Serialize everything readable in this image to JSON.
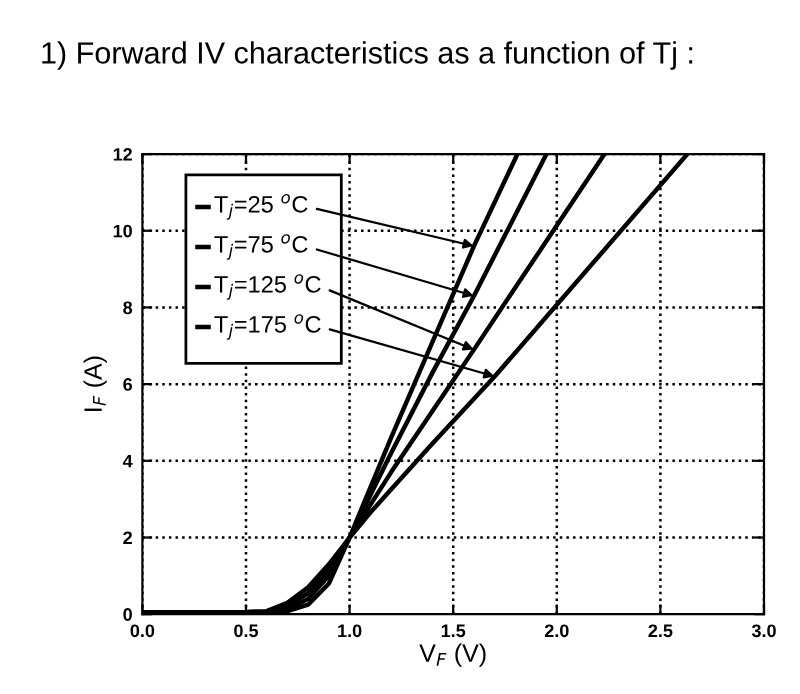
{
  "chart_data": {
    "type": "line",
    "title": "1) Forward IV characteristics as a function of Tj :",
    "xlabel": "V$_{F}$ (V)",
    "ylabel": "I$_{F}$ (A)",
    "xlim": [
      0,
      3
    ],
    "ylim": [
      0,
      12
    ],
    "xticks": [
      {
        "value": 0,
        "label": "0.0"
      },
      0.5,
      {
        "value": 1,
        "label": "1.0"
      },
      1.5,
      {
        "value": 2,
        "label": "2.0"
      },
      2.5,
      {
        "value": 3,
        "label": "3.0"
      }
    ],
    "yticks": [
      0,
      2,
      4,
      6,
      8,
      10,
      12
    ],
    "grid": true,
    "legend": "top left",
    "line_style": "solid",
    "marker": "none",
    "series": [
      {
        "name": "T$_{j}$=25 $^{o}$C",
        "color": "#000000",
        "x": [
          0,
          0.5,
          0.6,
          0.7,
          0.8,
          0.9,
          1.0,
          1.1,
          1.2,
          1.4,
          1.6,
          1.81
        ],
        "values": [
          0.05,
          0.05,
          0.05,
          0.08,
          0.25,
          0.8,
          2,
          3.3,
          4.6,
          7.1,
          9.6,
          12
        ]
      },
      {
        "name": "T$_{j}$=75 $^{o}$C",
        "color": "#000000",
        "x": [
          0,
          0.5,
          0.6,
          0.7,
          0.8,
          0.9,
          1.0,
          1.1,
          1.2,
          1.4,
          1.6,
          1.95
        ],
        "values": [
          0.05,
          0.05,
          0.05,
          0.12,
          0.4,
          1.0,
          2,
          3.1,
          4.2,
          6.3,
          8.3,
          12
        ]
      },
      {
        "name": "T$_{j}$=125 $^{o}$C",
        "color": "#000000",
        "x": [
          0,
          0.5,
          0.6,
          0.7,
          0.8,
          0.9,
          1.0,
          1.1,
          1.2,
          1.4,
          1.6,
          2.23
        ],
        "values": [
          0.05,
          0.05,
          0.06,
          0.2,
          0.55,
          1.15,
          2,
          2.85,
          3.7,
          5.3,
          6.9,
          12
        ]
      },
      {
        "name": "T$_{j}$=175 $^{o}$C",
        "color": "#000000",
        "x": [
          0,
          0.5,
          0.6,
          0.7,
          0.8,
          0.9,
          1.0,
          1.1,
          1.2,
          1.4,
          1.7,
          2.63
        ],
        "values": [
          0.05,
          0.06,
          0.08,
          0.3,
          0.7,
          1.3,
          2,
          2.65,
          3.25,
          4.45,
          6.2,
          12
        ]
      }
    ]
  }
}
